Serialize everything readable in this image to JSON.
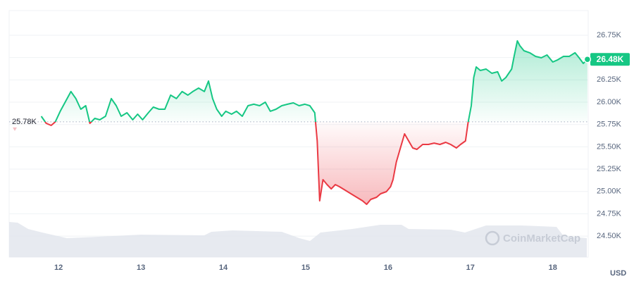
{
  "chart_data": {
    "type": "line",
    "x": [
      11.79,
      11.85,
      11.91,
      11.96,
      12.02,
      12.08,
      12.15,
      12.21,
      12.27,
      12.33,
      12.38,
      12.44,
      12.5,
      12.57,
      12.64,
      12.7,
      12.76,
      12.83,
      12.9,
      12.96,
      13.02,
      13.09,
      13.15,
      13.22,
      13.29,
      13.36,
      13.43,
      13.5,
      13.57,
      13.63,
      13.7,
      13.77,
      13.82,
      13.87,
      13.92,
      13.98,
      14.03,
      14.1,
      14.16,
      14.23,
      14.3,
      14.37,
      14.44,
      14.51,
      14.57,
      14.64,
      14.71,
      14.78,
      14.85,
      14.92,
      14.99,
      15.05,
      15.11,
      15.14,
      15.17,
      15.21,
      15.26,
      15.31,
      15.36,
      15.41,
      15.48,
      15.55,
      15.62,
      15.69,
      15.74,
      15.79,
      15.86,
      15.91,
      15.98,
      16.03,
      16.06,
      16.1,
      16.15,
      16.2,
      16.25,
      16.3,
      16.35,
      16.42,
      16.49,
      16.56,
      16.63,
      16.7,
      16.76,
      16.83,
      16.88,
      16.94,
      16.97,
      17.01,
      17.04,
      17.07,
      17.12,
      17.19,
      17.26,
      17.33,
      17.38,
      17.43,
      17.5,
      17.53,
      17.57,
      17.6,
      17.65,
      17.72,
      17.79,
      17.86,
      17.93,
      18.0,
      18.06,
      18.13,
      18.2,
      18.27,
      18.32,
      18.37,
      18.42
    ],
    "values": [
      25842,
      25763,
      25740,
      25779,
      25898,
      26000,
      26119,
      26040,
      25921,
      25961,
      25763,
      25819,
      25803,
      25842,
      26040,
      25961,
      25842,
      25882,
      25803,
      25866,
      25803,
      25882,
      25945,
      25921,
      25921,
      26079,
      26040,
      26119,
      26079,
      26119,
      26158,
      26119,
      26237,
      26040,
      25921,
      25842,
      25898,
      25866,
      25898,
      25842,
      25961,
      25977,
      25961,
      26000,
      25898,
      25921,
      25961,
      25977,
      25992,
      25961,
      25977,
      25961,
      25882,
      25566,
      24895,
      25132,
      25077,
      25029,
      25077,
      25053,
      25014,
      24974,
      24935,
      24895,
      24856,
      24911,
      24935,
      24974,
      24998,
      25053,
      25132,
      25329,
      25487,
      25645,
      25566,
      25487,
      25471,
      25527,
      25527,
      25542,
      25527,
      25550,
      25527,
      25487,
      25527,
      25566,
      25763,
      25961,
      26276,
      26395,
      26355,
      26371,
      26324,
      26340,
      26237,
      26276,
      26371,
      26513,
      26687,
      26632,
      26576,
      26553,
      26513,
      26497,
      26529,
      26450,
      26474,
      26513,
      26513,
      26553,
      26497,
      26434,
      26480
    ],
    "last_value_label": "26.48K",
    "reference_line": {
      "value": 25780,
      "label": "25.78K"
    },
    "up_color": "#16c784",
    "down_color": "#ea3943",
    "xlim": [
      11.4,
      18.43
    ],
    "xticks": [
      12,
      13,
      14,
      15,
      16,
      17,
      18
    ],
    "ylim": [
      24264,
      27026
    ],
    "yticks": [
      {
        "value": 24500,
        "label": "24.50K"
      },
      {
        "value": 24750,
        "label": "24.75K"
      },
      {
        "value": 25000,
        "label": "25.00K"
      },
      {
        "value": 25250,
        "label": "25.25K"
      },
      {
        "value": 25500,
        "label": "25.50K"
      },
      {
        "value": 25750,
        "label": "25.75K"
      },
      {
        "value": 26000,
        "label": "26.00K"
      },
      {
        "value": 26250,
        "label": "26.25K"
      },
      {
        "value": 26500,
        "label": "26.50K"
      },
      {
        "value": 26750,
        "label": "26.75K"
      }
    ],
    "grid": true,
    "y_unit": "USD",
    "watermark": "CoinMarketCap"
  }
}
